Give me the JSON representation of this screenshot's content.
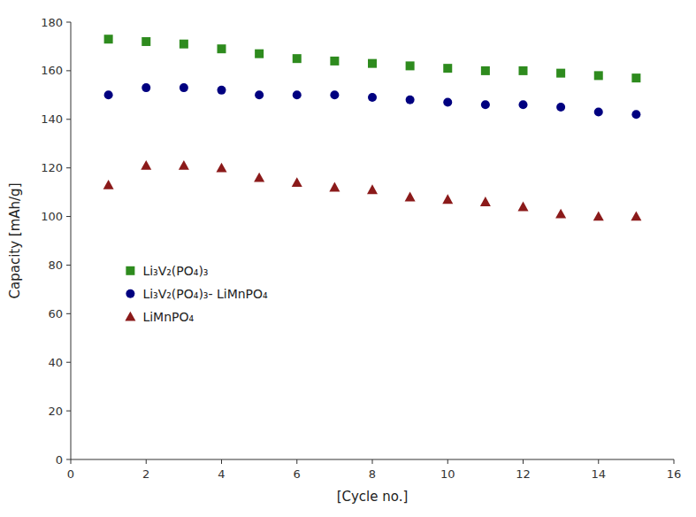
{
  "chart_data": {
    "type": "scatter",
    "xlabel": "[Cycle no.]",
    "ylabel": "Capacity [mAh/g]",
    "x": [
      1,
      2,
      3,
      4,
      5,
      6,
      7,
      8,
      9,
      10,
      11,
      12,
      13,
      14,
      15
    ],
    "series": [
      {
        "name": "Li₃V₂(PO₄)₃",
        "color": "#2e8b1e",
        "marker": "square",
        "values": [
          173,
          172,
          171,
          169,
          167,
          165,
          164,
          163,
          162,
          161,
          160,
          160,
          159,
          158,
          157
        ]
      },
      {
        "name": "Li₃V₂(PO₄)₃- LiMnPO₄",
        "color": "#000080",
        "marker": "circle",
        "values": [
          150,
          153,
          153,
          152,
          150,
          150,
          150,
          149,
          148,
          147,
          146,
          146,
          145,
          143,
          142
        ]
      },
      {
        "name": "LiMnPO₄",
        "color": "#8b1a1a",
        "marker": "triangle",
        "values": [
          113,
          121,
          121,
          120,
          116,
          114,
          112,
          111,
          108,
          107,
          106,
          104,
          101,
          100,
          100
        ]
      }
    ],
    "xlim": [
      0,
      16
    ],
    "ylim": [
      0,
      180
    ],
    "xticks": [
      0,
      2,
      4,
      6,
      8,
      10,
      12,
      14,
      16
    ],
    "yticks": [
      0,
      20,
      40,
      60,
      80,
      100,
      120,
      140,
      160,
      180
    ],
    "grid": false,
    "legend": "lower left"
  }
}
